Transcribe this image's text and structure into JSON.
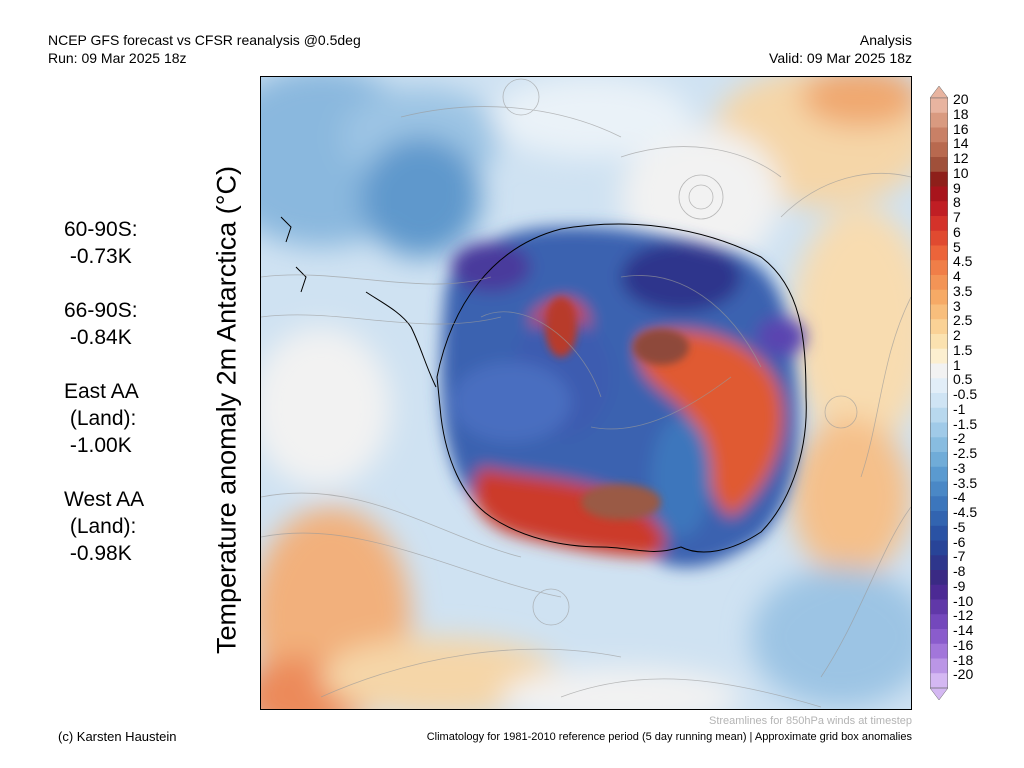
{
  "header": {
    "left_line1": "NCEP GFS forecast vs CFSR reanalysis @0.5deg",
    "left_line2": "Run: 09 Mar 2025 18z",
    "right_line1": "Analysis",
    "right_line2": "Valid: 09 Mar 2025 18z"
  },
  "map_title": "Temperature anomaly 2m Antarctica (°C)",
  "stats": [
    {
      "label": "60-90S:\n -0.73K"
    },
    {
      "label": "66-90S:\n -0.84K"
    },
    {
      "label": "East AA\n (Land):\n -1.00K"
    },
    {
      "label": "West AA\n (Land):\n -0.98K"
    }
  ],
  "colorbar": {
    "labels": [
      "20",
      "18",
      "16",
      "14",
      "12",
      "10",
      "9",
      "8",
      "7",
      "6",
      "5",
      "4.5",
      "4",
      "3.5",
      "3",
      "2.5",
      "2",
      "1.5",
      "1",
      "0.5",
      "-0.5",
      "-1",
      "-1.5",
      "-2",
      "-2.5",
      "-3",
      "-3.5",
      "-4",
      "-4.5",
      "-5",
      "-6",
      "-7",
      "-8",
      "-9",
      "-10",
      "-12",
      "-14",
      "-16",
      "-18",
      "-20"
    ],
    "colors": [
      "#e8b4a0",
      "#d99a80",
      "#c98066",
      "#b8694f",
      "#a0503a",
      "#8e1f1a",
      "#a8141c",
      "#c01e24",
      "#d4322a",
      "#e04a30",
      "#ec643a",
      "#f07e48",
      "#f39456",
      "#f6aa66",
      "#f8be7c",
      "#fad296",
      "#fbe2b0",
      "#fcefd0",
      "#f2f2f2",
      "#e2eef8",
      "#cfe4f4",
      "#b8d8ee",
      "#a0cae8",
      "#88bce0",
      "#70acd8",
      "#5a9ad0",
      "#4a88c6",
      "#3c76bc",
      "#3264b0",
      "#2a52a4",
      "#284498",
      "#2e368c",
      "#3a2a84",
      "#4c2a94",
      "#6038a8",
      "#7448bc",
      "#8a5ccc",
      "#a276da",
      "#bb96e6",
      "#d4b8f2"
    ]
  },
  "footer": {
    "credit": "(c) Karsten Haustein",
    "streamlines": "Streamlines for 850hPa winds at timestep",
    "climatology": "Climatology for 1981-2010 reference period (5 day running mean) | Approximate grid box anomalies"
  }
}
